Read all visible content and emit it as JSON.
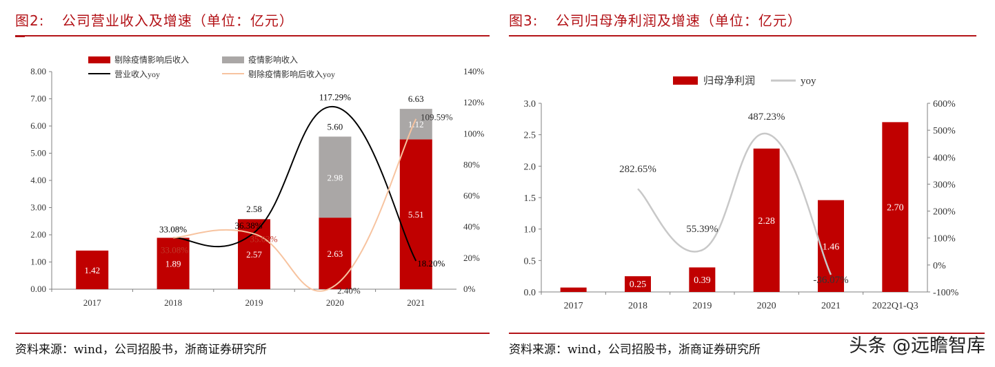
{
  "watermark": "头条 @远瞻智库",
  "charts": [
    {
      "figure_label": "图2:",
      "title": "公司营业收入及增速（单位：亿元）",
      "source": "资料来源：wind，公司招股书，浙商证券研究所",
      "colors": {
        "accent": "#b31217",
        "bar_red": "#c00000",
        "bar_grey": "#aaa7a6",
        "line_black": "#000000",
        "line_peach": "#f7c39f"
      }
    },
    {
      "figure_label": "图3:",
      "title": "公司归母净利润及增速（单位：亿元）",
      "source": "资料来源：wind，公司招股书，浙商证券研究所",
      "colors": {
        "accent": "#b31217",
        "bar_red": "#c00000",
        "line_grey": "#c8c8c8"
      }
    }
  ],
  "chart_data": [
    {
      "type": "bar",
      "stacked": true,
      "categories": [
        "2017",
        "2018",
        "2019",
        "2020",
        "2021"
      ],
      "y_left": {
        "min": 0,
        "max": 8,
        "ticks": [
          "0.00",
          "1.00",
          "2.00",
          "3.00",
          "4.00",
          "5.00",
          "6.00",
          "7.00",
          "8.00"
        ]
      },
      "y_right": {
        "min": 0,
        "max": 140,
        "ticks": [
          "0%",
          "20%",
          "40%",
          "60%",
          "80%",
          "100%",
          "120%",
          "140%"
        ]
      },
      "legend_position": "top-left",
      "series": [
        {
          "name": "剔除疫情影响后收入",
          "kind": "bar",
          "axis": "left",
          "values": [
            1.42,
            1.89,
            2.57,
            2.63,
            5.51
          ],
          "labels": [
            "1.42",
            "1.89",
            "2.57",
            "2.63",
            "5.51"
          ]
        },
        {
          "name": "疫情影响收入",
          "kind": "bar",
          "axis": "left",
          "values": [
            0,
            0,
            0.01,
            2.98,
            1.12
          ],
          "labels": [
            "",
            "",
            "",
            "2.98",
            "1.12"
          ]
        },
        {
          "name": "营业收入yoy",
          "kind": "line",
          "axis": "right",
          "x": [
            "2018",
            "2019",
            "2020",
            "2021"
          ],
          "values": [
            33.08,
            36.38,
            117.29,
            18.2
          ],
          "labels": [
            "33.08%",
            "36.38%",
            "117.29%",
            "18.20%"
          ]
        },
        {
          "name": "剔除疫情影响后收入yoy",
          "kind": "line",
          "axis": "right",
          "x": [
            "2018",
            "2019",
            "2020",
            "2021"
          ],
          "values": [
            33.08,
            35.63,
            2.4,
            109.59
          ],
          "labels": [
            "33.08%",
            "35.63%",
            "2.40%",
            "109.59%"
          ]
        }
      ],
      "totals": [
        {
          "category": "2019",
          "label": "2.58"
        },
        {
          "category": "2020",
          "label": "5.60"
        },
        {
          "category": "2021",
          "label": "6.63"
        }
      ]
    },
    {
      "type": "bar",
      "categories": [
        "2017",
        "2018",
        "2019",
        "2020",
        "2021",
        "2022Q1-Q3"
      ],
      "y_left": {
        "min": 0,
        "max": 3,
        "ticks": [
          "0.0",
          "0.5",
          "1.0",
          "1.5",
          "2.0",
          "2.5",
          "3.0"
        ]
      },
      "y_right": {
        "min": -100,
        "max": 600,
        "ticks": [
          "-100%",
          "0%",
          "100%",
          "200%",
          "300%",
          "400%",
          "500%",
          "600%"
        ]
      },
      "legend_position": "top",
      "series": [
        {
          "name": "归母净利润",
          "kind": "bar",
          "axis": "left",
          "values": [
            0.07,
            0.25,
            0.39,
            2.28,
            1.46,
            2.7
          ],
          "labels": [
            "",
            "0.25",
            "0.39",
            "2.28",
            "1.46",
            "2.70"
          ]
        },
        {
          "name": "yoy",
          "kind": "line",
          "axis": "right",
          "x": [
            "2018",
            "2019",
            "2020",
            "2021"
          ],
          "values": [
            282.65,
            55.39,
            487.23,
            -36.07
          ],
          "labels": [
            "282.65%",
            "55.39%",
            "487.23%",
            "-36.07%"
          ]
        }
      ]
    }
  ]
}
